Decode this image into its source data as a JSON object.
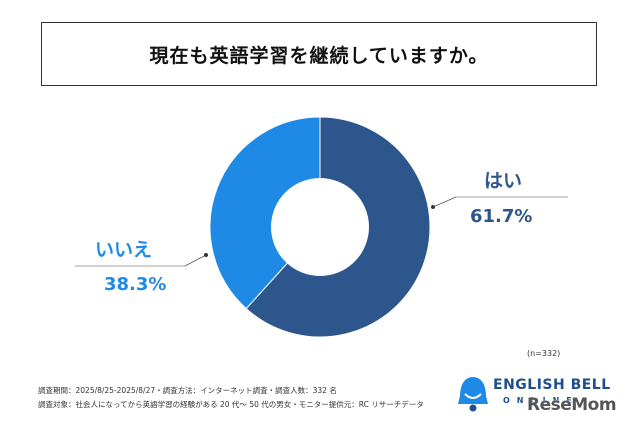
{
  "header": {
    "title": "現在も英語学習を継続していますか。"
  },
  "chart_data": {
    "type": "pie",
    "donut": true,
    "categories": [
      "はい",
      "いいえ"
    ],
    "values": [
      61.7,
      38.3
    ],
    "value_labels": [
      "61.7%",
      "38.3%"
    ],
    "colors": [
      "#2d578c",
      "#1f8ae6"
    ],
    "label_colors": [
      "#2d578c",
      "#1f8ae6"
    ],
    "n_label": "(n=332)"
  },
  "footer": {
    "line1": "調査期間：2025/8/25-2025/8/27・調査方法：インターネット調査・調査人数：332 名",
    "line2": "調査対象：社会人になってから英語学習の経験がある 20 代～ 50 代の男女・モニター提供元：RC リサーチデータ"
  },
  "brand": {
    "name": "ENGLISH BELL",
    "sub": "ONLINE",
    "watermark": "ReseMom"
  }
}
